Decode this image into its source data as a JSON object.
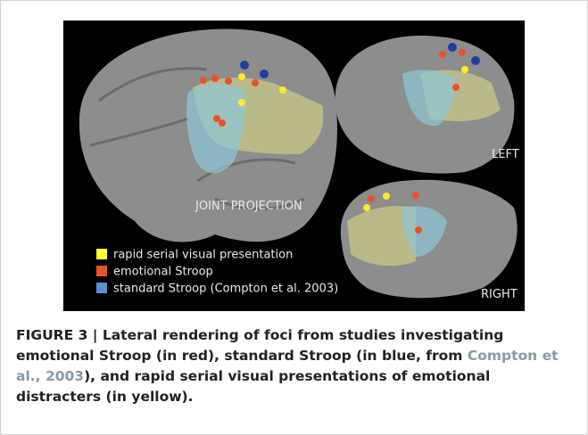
{
  "figure": {
    "panel_labels": {
      "joint": "JOINT PROJECTION",
      "left": "LEFT",
      "right": "RIGHT"
    },
    "legend": [
      "rapid serial visual presentation",
      "emotional Stroop",
      "standard Stroop (Compton et al. 2003)"
    ],
    "caption": {
      "label": "FIGURE 3 | Lateral rendering of foci from studies investigating emotional Stroop (in red), standard Stroop (in blue, from ",
      "link": "Compton et al., 2003",
      "rest": "), and rapid serial visual presentations of emotional distracters (in yellow)."
    }
  }
}
